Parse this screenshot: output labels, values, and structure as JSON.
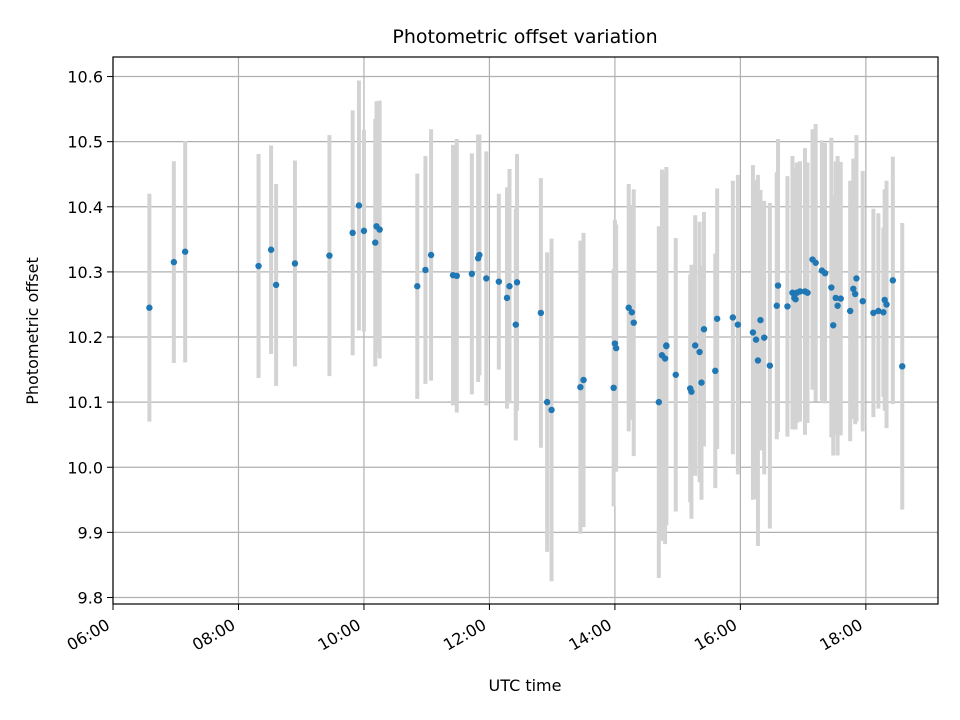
{
  "chart_data": {
    "type": "scatter",
    "title": "Photometric offset variation",
    "xlabel": "UTC time",
    "ylabel": "Photometric offset",
    "x_unit": "hours",
    "xlim": [
      6.0,
      19.15
    ],
    "ylim": [
      9.79,
      10.63
    ],
    "x_ticks": [
      6,
      8,
      10,
      12,
      14,
      16,
      18
    ],
    "x_tick_labels": [
      "06:00",
      "08:00",
      "10:00",
      "12:00",
      "14:00",
      "16:00",
      "18:00"
    ],
    "y_ticks": [
      9.8,
      9.9,
      10.0,
      10.1,
      10.2,
      10.3,
      10.4,
      10.5,
      10.6
    ],
    "y_tick_labels": [
      "9.8",
      "9.9",
      "10.0",
      "10.1",
      "10.2",
      "10.3",
      "10.4",
      "10.5",
      "10.6"
    ],
    "grid": true,
    "colors": {
      "point": "#1f77b4",
      "errorbar": "#d3d3d3",
      "grid": "#b0b0b0",
      "axes": "#000000"
    },
    "series": [
      {
        "x": [
          6.58,
          6.97,
          7.15,
          8.32,
          8.52,
          8.6,
          8.9,
          9.45,
          9.82,
          9.92,
          10.0,
          10.18,
          10.2,
          10.25,
          10.85,
          10.98,
          11.07,
          11.42,
          11.48,
          11.72,
          11.82,
          11.84,
          11.95,
          12.15,
          12.28,
          12.32,
          12.42,
          12.44,
          12.82,
          12.92,
          12.99,
          13.45,
          13.5,
          13.98,
          14.0,
          14.02,
          14.22,
          14.27,
          14.3,
          14.7,
          14.75,
          14.8,
          14.82,
          14.82,
          14.97,
          15.2,
          15.22,
          15.28,
          15.35,
          15.38,
          15.42,
          15.6,
          15.63,
          15.88,
          15.96,
          16.2,
          16.25,
          16.28,
          16.32,
          16.38,
          16.47,
          16.58,
          16.6,
          16.75,
          16.83,
          16.86,
          16.88,
          16.9,
          16.95,
          17.03,
          17.07,
          17.15,
          17.2,
          17.3,
          17.35,
          17.45,
          17.48,
          17.52,
          17.55,
          17.6,
          17.75,
          17.8,
          17.83,
          17.85,
          17.95,
          18.12,
          18.2,
          18.28,
          18.3,
          18.33,
          18.43,
          18.58
        ],
        "y": [
          10.245,
          10.315,
          10.331,
          10.309,
          10.334,
          10.28,
          10.313,
          10.325,
          10.36,
          10.402,
          10.363,
          10.345,
          10.37,
          10.365,
          10.278,
          10.303,
          10.326,
          10.295,
          10.294,
          10.297,
          10.321,
          10.326,
          10.29,
          10.285,
          10.26,
          10.278,
          10.219,
          10.284,
          10.237,
          10.1,
          10.088,
          10.123,
          10.134,
          10.122,
          10.19,
          10.183,
          10.245,
          10.238,
          10.222,
          10.1,
          10.172,
          10.167,
          10.187,
          10.186,
          10.142,
          10.121,
          10.116,
          10.187,
          10.177,
          10.13,
          10.212,
          10.148,
          10.228,
          10.23,
          10.219,
          10.207,
          10.196,
          10.164,
          10.226,
          10.199,
          10.156,
          10.248,
          10.279,
          10.247,
          10.268,
          10.26,
          10.258,
          10.268,
          10.27,
          10.27,
          10.268,
          10.319,
          10.314,
          10.302,
          10.298,
          10.276,
          10.218,
          10.26,
          10.248,
          10.259,
          10.24,
          10.274,
          10.266,
          10.29,
          10.255,
          10.237,
          10.24,
          10.238,
          10.257,
          10.25,
          10.287,
          10.155
        ],
        "err": [
          0.175,
          0.155,
          0.17,
          0.172,
          0.16,
          0.155,
          0.158,
          0.185,
          0.188,
          0.192,
          0.155,
          0.19,
          0.192,
          0.198,
          0.173,
          0.175,
          0.193,
          0.2,
          0.21,
          0.185,
          0.19,
          0.185,
          0.195,
          0.135,
          0.17,
          0.18,
          0.178,
          0.197,
          0.207,
          0.23,
          0.263,
          0.225,
          0.226,
          0.182,
          0.19,
          0.19,
          0.19,
          0.165,
          0.205,
          0.27,
          0.285,
          0.285,
          0.27,
          0.275,
          0.21,
          0.175,
          0.195,
          0.2,
          0.2,
          0.18,
          0.18,
          0.18,
          0.2,
          0.21,
          0.23,
          0.257,
          0.245,
          0.285,
          0.2,
          0.21,
          0.25,
          0.205,
          0.225,
          0.2,
          0.21,
          0.2,
          0.2,
          0.2,
          0.2,
          0.22,
          0.2,
          0.2,
          0.213,
          0.2,
          0.2,
          0.23,
          0.2,
          0.21,
          0.23,
          0.21,
          0.2,
          0.2,
          0.2,
          0.22,
          0.2,
          0.16,
          0.15,
          0.13,
          0.17,
          0.19,
          0.19,
          0.22
        ]
      }
    ]
  }
}
